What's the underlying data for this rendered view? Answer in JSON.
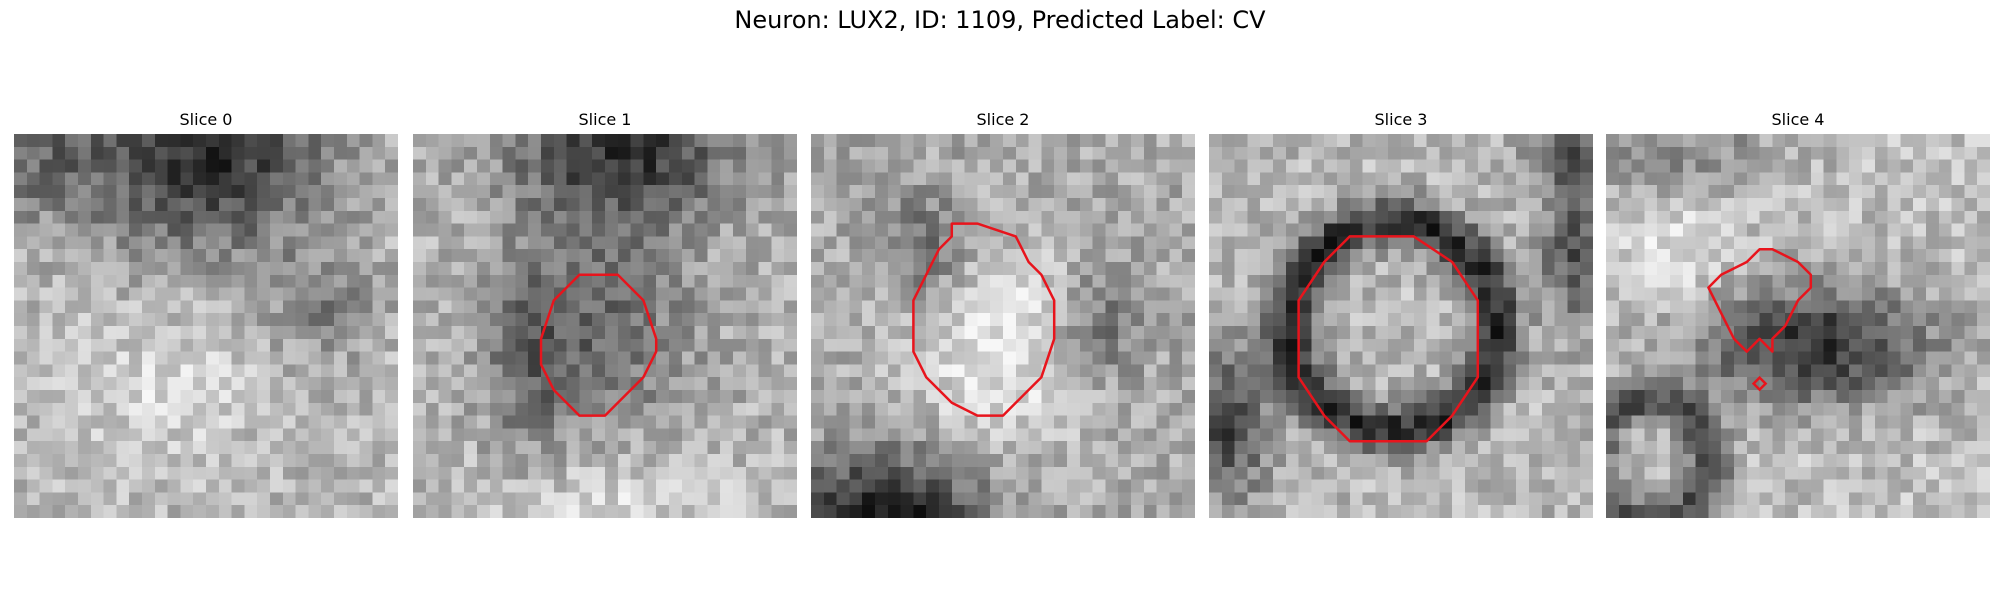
{
  "figure": {
    "title": "Neuron: LUX2, ID: 1109, Predicted Label: CV",
    "grid_size": 30,
    "contour_color": "#e8141c",
    "panels": [
      {
        "title": "Slice 0",
        "seed": 11,
        "pattern": "top-dark-blob",
        "has_contour": false
      },
      {
        "title": "Slice 1",
        "seed": 23,
        "pattern": "center-gray",
        "has_contour": true
      },
      {
        "title": "Slice 2",
        "seed": 37,
        "pattern": "bright-center",
        "has_contour": true
      },
      {
        "title": "Slice 3",
        "seed": 53,
        "pattern": "dark-ring",
        "has_contour": true
      },
      {
        "title": "Slice 4",
        "seed": 71,
        "pattern": "dark-lobe",
        "has_contour": true
      }
    ]
  }
}
